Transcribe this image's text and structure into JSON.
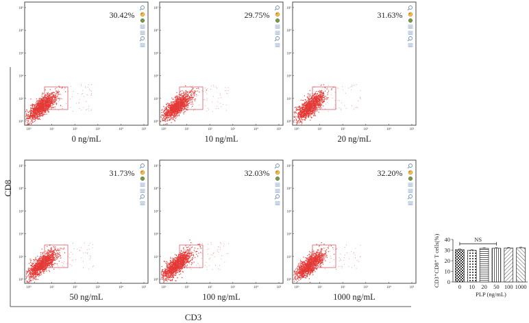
{
  "figure": {
    "y_axis_title": "CD8",
    "x_axis_title": "CD3"
  },
  "flow_ticks": [
    "10⁰",
    "10¹",
    "10²",
    "10³",
    "10⁴",
    "10⁵"
  ],
  "panels": [
    {
      "label": "0 ng/mL",
      "percent": "30.42%"
    },
    {
      "label": "10 ng/mL",
      "percent": "29.75%"
    },
    {
      "label": "20 ng/mL",
      "percent": "31.63%"
    },
    {
      "label": "50 ng/mL",
      "percent": "31.73%"
    },
    {
      "label": "100 ng/mL",
      "percent": "32.03%"
    },
    {
      "label": "1000 ng/mL",
      "percent": "32.20%"
    }
  ],
  "panel_icons": [
    "zoom-in-icon",
    "palette-icon",
    "gear-icon",
    "list-icon",
    "list-icon",
    "zoom-out-icon",
    "list-icon"
  ],
  "chart_data": {
    "type": "bar",
    "categories": [
      "0",
      "10",
      "20",
      "50",
      "100",
      "1000"
    ],
    "values": [
      30.42,
      29.75,
      31.63,
      31.73,
      32.03,
      32.2
    ],
    "xlabel": "PLP (ng/mL)",
    "ylabel": "CD3⁺CD8⁺ T cells(%)",
    "ylim": [
      0,
      40
    ],
    "yticks": [
      0,
      10,
      20,
      30,
      40
    ],
    "annotation": "NS",
    "patterns": [
      "checker",
      "dots",
      "hlines",
      "vlines",
      "diag-right",
      "diag-left"
    ]
  }
}
